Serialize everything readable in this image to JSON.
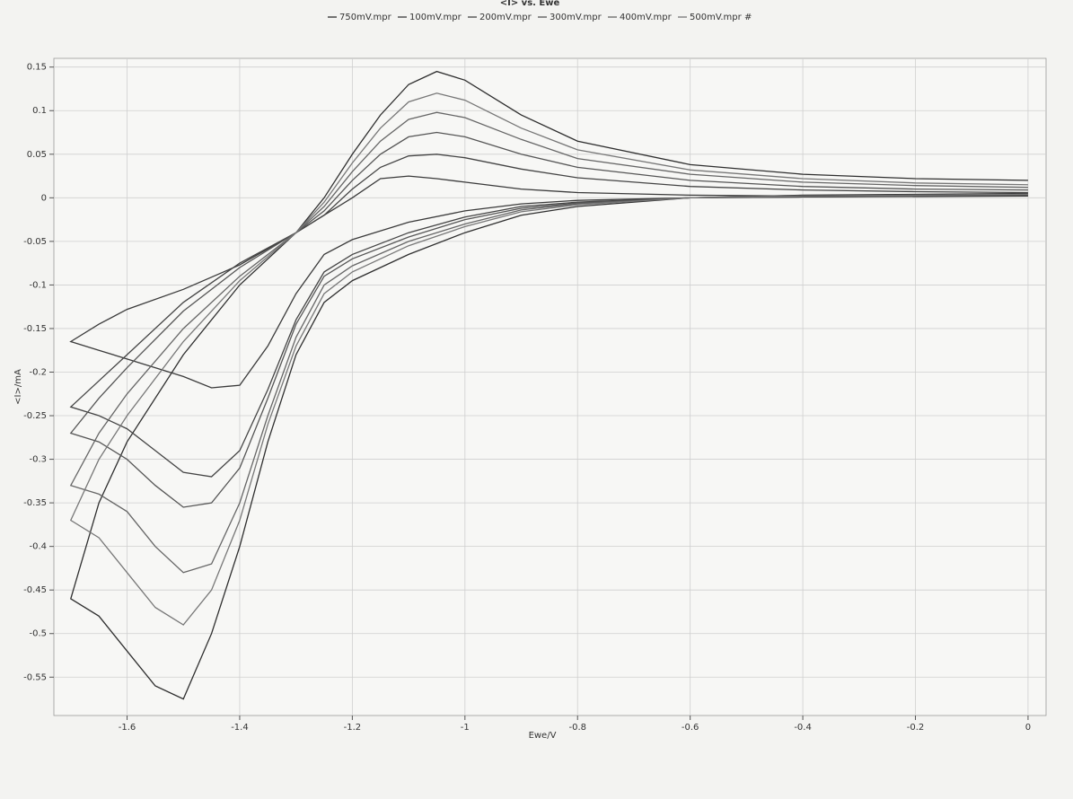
{
  "chart_data": {
    "type": "line",
    "title": "<I> vs. Ewe",
    "xlabel": "Ewe/V",
    "ylabel": "<I>/mA",
    "xlim": [
      -1.73,
      0.032
    ],
    "ylim": [
      -0.594,
      0.16
    ],
    "xticks": [
      -1.6,
      -1.4,
      -1.2,
      -1,
      -0.8,
      -0.6,
      -0.4,
      -0.2,
      0
    ],
    "yticks": [
      0.15,
      0.1,
      0.05,
      0,
      -0.05,
      -0.1,
      -0.15,
      -0.2,
      -0.25,
      -0.3,
      -0.35,
      -0.4,
      -0.45,
      -0.5,
      -0.55
    ],
    "grid": true,
    "series": [
      {
        "name": "750mV.mpr",
        "color": "#2e2e2e",
        "x": [
          0,
          -0.4,
          -0.6,
          -0.8,
          -0.9,
          -1.0,
          -1.1,
          -1.2,
          -1.25,
          -1.3,
          -1.35,
          -1.4,
          -1.45,
          -1.5,
          -1.55,
          -1.6,
          -1.65,
          -1.7,
          -1.65,
          -1.6,
          -1.5,
          -1.4,
          -1.3,
          -1.25,
          -1.2,
          -1.15,
          -1.1,
          -1.05,
          -1.0,
          -0.9,
          -0.8,
          -0.6,
          -0.4,
          -0.2,
          0
        ],
        "values": [
          0.005,
          0.003,
          0.0,
          -0.01,
          -0.02,
          -0.04,
          -0.065,
          -0.095,
          -0.12,
          -0.18,
          -0.28,
          -0.4,
          -0.5,
          -0.575,
          -0.56,
          -0.52,
          -0.48,
          -0.46,
          -0.35,
          -0.28,
          -0.18,
          -0.1,
          -0.04,
          0.0,
          0.05,
          0.095,
          0.13,
          0.145,
          0.135,
          0.095,
          0.065,
          0.038,
          0.027,
          0.022,
          0.02
        ]
      },
      {
        "name": "100mV.mpr",
        "color": "#3a3a3a",
        "x": [
          0,
          -0.4,
          -0.6,
          -0.8,
          -0.9,
          -1.0,
          -1.1,
          -1.2,
          -1.25,
          -1.3,
          -1.35,
          -1.4,
          -1.45,
          -1.5,
          -1.55,
          -1.6,
          -1.65,
          -1.7,
          -1.65,
          -1.6,
          -1.5,
          -1.4,
          -1.3,
          -1.25,
          -1.2,
          -1.15,
          -1.1,
          -1.05,
          -1.0,
          -0.9,
          -0.8,
          -0.6,
          -0.4,
          -0.2,
          0
        ],
        "values": [
          0.002,
          0.001,
          0,
          -0.003,
          -0.007,
          -0.015,
          -0.028,
          -0.048,
          -0.065,
          -0.11,
          -0.17,
          -0.215,
          -0.218,
          -0.205,
          -0.195,
          -0.185,
          -0.175,
          -0.165,
          -0.145,
          -0.128,
          -0.105,
          -0.077,
          -0.04,
          -0.02,
          0.0,
          0.022,
          0.025,
          0.022,
          0.018,
          0.01,
          0.006,
          0.003,
          0.002,
          0.002,
          0.002
        ]
      },
      {
        "name": "200mV.mpr",
        "color": "#444444",
        "x": [
          0,
          -0.4,
          -0.6,
          -0.8,
          -0.9,
          -1.0,
          -1.1,
          -1.2,
          -1.25,
          -1.3,
          -1.35,
          -1.4,
          -1.45,
          -1.5,
          -1.55,
          -1.6,
          -1.65,
          -1.7,
          -1.65,
          -1.6,
          -1.5,
          -1.4,
          -1.3,
          -1.25,
          -1.2,
          -1.15,
          -1.1,
          -1.05,
          -1.0,
          -0.9,
          -0.8,
          -0.6,
          -0.4,
          -0.2,
          0
        ],
        "values": [
          0.003,
          0.001,
          0,
          -0.005,
          -0.01,
          -0.022,
          -0.04,
          -0.065,
          -0.085,
          -0.14,
          -0.22,
          -0.29,
          -0.32,
          -0.315,
          -0.29,
          -0.265,
          -0.25,
          -0.24,
          -0.21,
          -0.18,
          -0.12,
          -0.075,
          -0.04,
          -0.02,
          0.01,
          0.035,
          0.048,
          0.05,
          0.046,
          0.033,
          0.023,
          0.013,
          0.009,
          0.007,
          0.006
        ]
      },
      {
        "name": "300mV.mpr",
        "color": "#555555",
        "x": [
          0,
          -0.4,
          -0.6,
          -0.8,
          -0.9,
          -1.0,
          -1.1,
          -1.2,
          -1.25,
          -1.3,
          -1.35,
          -1.4,
          -1.45,
          -1.5,
          -1.55,
          -1.6,
          -1.65,
          -1.7,
          -1.65,
          -1.6,
          -1.5,
          -1.4,
          -1.3,
          -1.25,
          -1.2,
          -1.15,
          -1.1,
          -1.05,
          -1.0,
          -0.9,
          -0.8,
          -0.6,
          -0.4,
          -0.2,
          0
        ],
        "values": [
          0.003,
          0.002,
          0,
          -0.006,
          -0.012,
          -0.025,
          -0.045,
          -0.07,
          -0.09,
          -0.145,
          -0.23,
          -0.31,
          -0.35,
          -0.355,
          -0.33,
          -0.3,
          -0.28,
          -0.27,
          -0.23,
          -0.195,
          -0.13,
          -0.08,
          -0.04,
          -0.015,
          0.02,
          0.05,
          0.07,
          0.075,
          0.07,
          0.05,
          0.035,
          0.02,
          0.013,
          0.01,
          0.009
        ]
      },
      {
        "name": "400mV.mpr",
        "color": "#666666",
        "x": [
          0,
          -0.4,
          -0.6,
          -0.8,
          -0.9,
          -1.0,
          -1.1,
          -1.2,
          -1.25,
          -1.3,
          -1.35,
          -1.4,
          -1.45,
          -1.5,
          -1.55,
          -1.6,
          -1.65,
          -1.7,
          -1.65,
          -1.6,
          -1.5,
          -1.4,
          -1.3,
          -1.25,
          -1.2,
          -1.15,
          -1.1,
          -1.05,
          -1.0,
          -0.9,
          -0.8,
          -0.6,
          -0.4,
          -0.2,
          0
        ],
        "values": [
          0.004,
          0.002,
          0,
          -0.007,
          -0.014,
          -0.03,
          -0.05,
          -0.078,
          -0.1,
          -0.16,
          -0.25,
          -0.35,
          -0.42,
          -0.43,
          -0.4,
          -0.36,
          -0.34,
          -0.33,
          -0.27,
          -0.225,
          -0.15,
          -0.09,
          -0.04,
          -0.01,
          0.03,
          0.065,
          0.09,
          0.098,
          0.092,
          0.067,
          0.045,
          0.027,
          0.018,
          0.014,
          0.012
        ]
      },
      {
        "name": "500mV.mpr #",
        "color": "#777777",
        "x": [
          0,
          -0.4,
          -0.6,
          -0.8,
          -0.9,
          -1.0,
          -1.1,
          -1.2,
          -1.25,
          -1.3,
          -1.35,
          -1.4,
          -1.45,
          -1.5,
          -1.55,
          -1.6,
          -1.65,
          -1.7,
          -1.65,
          -1.6,
          -1.5,
          -1.4,
          -1.3,
          -1.25,
          -1.2,
          -1.15,
          -1.1,
          -1.05,
          -1.0,
          -0.9,
          -0.8,
          -0.6,
          -0.4,
          -0.2,
          0
        ],
        "values": [
          0.004,
          0.002,
          0,
          -0.008,
          -0.016,
          -0.033,
          -0.055,
          -0.085,
          -0.11,
          -0.17,
          -0.26,
          -0.37,
          -0.45,
          -0.49,
          -0.47,
          -0.43,
          -0.39,
          -0.37,
          -0.3,
          -0.25,
          -0.165,
          -0.095,
          -0.04,
          -0.005,
          0.04,
          0.08,
          0.11,
          0.12,
          0.112,
          0.08,
          0.055,
          0.032,
          0.022,
          0.017,
          0.015
        ]
      }
    ]
  }
}
